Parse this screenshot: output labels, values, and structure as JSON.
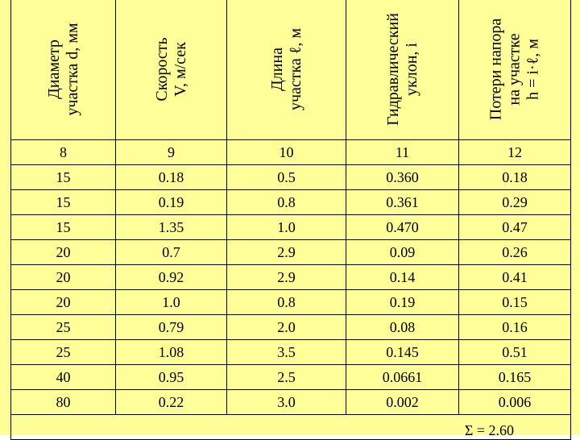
{
  "headers": [
    {
      "line1": "Диаметр",
      "line2": "участка d, мм"
    },
    {
      "line1": "Скорость",
      "line2": "V, м/сек"
    },
    {
      "line1": "Длина",
      "line2": "участка ℓ,  м"
    },
    {
      "line1": "Гидравлический",
      "line2": "уклон, i"
    },
    {
      "line1": "Потери  напора",
      "line2": "на  участке",
      "line3": "h = i·ℓ,  м"
    }
  ],
  "column_numbers": [
    "8",
    "9",
    "10",
    "11",
    "12"
  ],
  "rows": [
    [
      "15",
      "0.18",
      "0.5",
      "0.360",
      "0.18"
    ],
    [
      "15",
      "0.19",
      "0.8",
      "0.361",
      "0.29"
    ],
    [
      "15",
      "1.35",
      "1.0",
      "0.470",
      "0.47"
    ],
    [
      "20",
      "0.7",
      "2.9",
      "0.09",
      "0.26"
    ],
    [
      "20",
      "0.92",
      "2.9",
      "0.14",
      "0.41"
    ],
    [
      "20",
      "1.0",
      "0.8",
      "0.19",
      "0.15"
    ],
    [
      "25",
      "0.79",
      "2.0",
      "0.08",
      "0.16"
    ],
    [
      "25",
      "1.08",
      "3.5",
      "0.145",
      "0.51"
    ],
    [
      "40",
      "0.95",
      "2.5",
      "0.0661",
      "0.165"
    ],
    [
      "80",
      "0.22",
      "3.0",
      "0.002",
      "0.006"
    ]
  ],
  "total": "Σ = 2.60"
}
